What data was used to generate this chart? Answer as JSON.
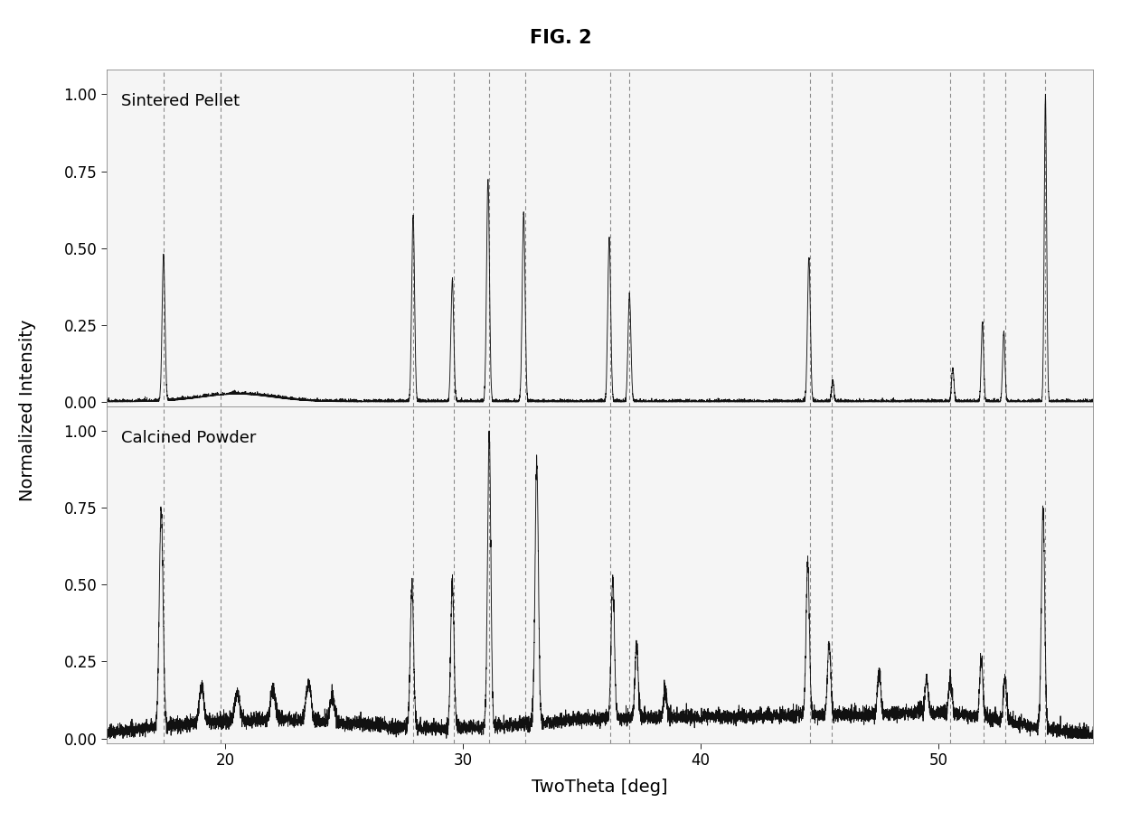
{
  "title": "FIG. 2",
  "xlabel": "TwoTheta [deg]",
  "ylabel": "Normalized Intensity",
  "xlim": [
    15.0,
    56.5
  ],
  "xticks": [
    20,
    30,
    40,
    50
  ],
  "yticks": [
    0.0,
    0.25,
    0.5,
    0.75,
    1.0
  ],
  "label_top": "Sintered Pellet",
  "label_bot": "Calcined Powder",
  "dashed_lines": [
    17.4,
    19.8,
    27.9,
    29.6,
    31.1,
    32.6,
    36.2,
    37.0,
    44.6,
    45.5,
    50.5,
    51.9,
    52.8,
    54.5
  ],
  "background_color": "#ffffff",
  "line_color": "#111111",
  "dashed_color": "#777777",
  "title_fontsize": 15,
  "label_fontsize": 13,
  "tick_fontsize": 12,
  "sp_peaks": [
    17.4,
    27.9,
    29.55,
    31.05,
    32.55,
    36.15,
    37.0,
    44.55,
    45.55,
    50.6,
    51.85,
    52.75,
    54.5
  ],
  "sp_heights": [
    0.48,
    0.61,
    0.4,
    0.73,
    0.62,
    0.54,
    0.35,
    0.47,
    0.07,
    0.11,
    0.26,
    0.23,
    1.0
  ],
  "sp_widths": [
    0.06,
    0.06,
    0.06,
    0.06,
    0.06,
    0.06,
    0.06,
    0.06,
    0.05,
    0.05,
    0.05,
    0.05,
    0.05
  ],
  "cp_peaks": [
    17.3,
    19.0,
    20.5,
    22.0,
    23.5,
    24.5,
    27.85,
    29.55,
    31.1,
    33.1,
    36.3,
    37.3,
    38.5,
    44.5,
    45.4,
    47.5,
    49.5,
    50.5,
    51.8,
    52.8,
    54.4
  ],
  "cp_heights": [
    0.75,
    0.13,
    0.1,
    0.11,
    0.13,
    0.09,
    0.5,
    0.5,
    1.0,
    0.9,
    0.48,
    0.25,
    0.1,
    0.53,
    0.25,
    0.15,
    0.12,
    0.12,
    0.2,
    0.15,
    0.75
  ],
  "cp_widths": [
    0.08,
    0.1,
    0.1,
    0.1,
    0.1,
    0.1,
    0.07,
    0.07,
    0.07,
    0.07,
    0.07,
    0.07,
    0.07,
    0.07,
    0.07,
    0.07,
    0.07,
    0.07,
    0.07,
    0.07,
    0.07
  ]
}
